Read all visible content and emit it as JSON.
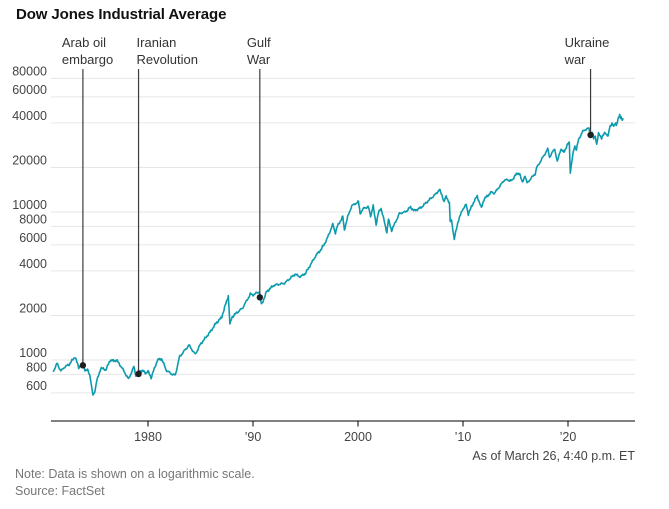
{
  "header": {
    "title": "Dow Jones Industrial Average"
  },
  "footer": {
    "as_of": "As of March 26, 4:40 p.m. ET",
    "note": "Note: Data is shown on a logarithmic scale.",
    "source": "Source: FactSet"
  },
  "chart_data": {
    "type": "line",
    "title": "Dow Jones Industrial Average",
    "scale": "logarithmic-y",
    "line_color": "#0c9aad",
    "gridline_color": "#e6e6e6",
    "axis_color": "#000000",
    "tick_label_color": "#444444",
    "annotation_color": "#333333",
    "legend": "none",
    "grid": "horizontal-only",
    "xlim": [
      1971,
      2025.3
    ],
    "ylim": [
      550,
      90000
    ],
    "y_ticks": [
      80000,
      60000,
      40000,
      20000,
      10000,
      8000,
      6000,
      4000,
      2000,
      1000,
      800,
      600
    ],
    "x_ticks": [
      {
        "year": 1980,
        "label": "1980"
      },
      {
        "year": 1990,
        "label": "’90"
      },
      {
        "year": 2000,
        "label": "2000"
      },
      {
        "year": 2010,
        "label": "’10"
      },
      {
        "year": 2020,
        "label": "’20"
      }
    ],
    "annotations": [
      {
        "label_lines": [
          "Arab oil",
          "embargo"
        ],
        "year": 1973.8,
        "value": 920,
        "label_dx": -21
      },
      {
        "label_lines": [
          "Iranian",
          "Revolution"
        ],
        "year": 1979.1,
        "value": 805,
        "label_dx": -2
      },
      {
        "label_lines": [
          "Gulf",
          "War"
        ],
        "year": 1990.65,
        "value": 2650,
        "label_dx": -13
      },
      {
        "label_lines": [
          "Ukraine",
          "war"
        ],
        "year": 2022.15,
        "value": 33131,
        "label_dx": -26
      }
    ],
    "series": [
      {
        "name": "Dow Jones Industrial Average",
        "points": [
          [
            1971.0,
            839
          ],
          [
            1971.35,
            950
          ],
          [
            1971.7,
            840
          ],
          [
            1972.0,
            890
          ],
          [
            1972.5,
            935
          ],
          [
            1973.05,
            1052
          ],
          [
            1973.4,
            890
          ],
          [
            1973.6,
            925
          ],
          [
            1973.8,
            960
          ],
          [
            1974.0,
            855
          ],
          [
            1974.25,
            850
          ],
          [
            1974.45,
            800
          ],
          [
            1974.75,
            577
          ],
          [
            1974.95,
            620
          ],
          [
            1975.1,
            710
          ],
          [
            1975.5,
            880
          ],
          [
            1976.0,
            860
          ],
          [
            1976.4,
            1000
          ],
          [
            1976.75,
            985
          ],
          [
            1977.0,
            1000
          ],
          [
            1977.5,
            890
          ],
          [
            1978.15,
            742
          ],
          [
            1978.65,
            900
          ],
          [
            1978.85,
            790
          ],
          [
            1979.1,
            840
          ],
          [
            1979.5,
            845
          ],
          [
            1979.8,
            815
          ],
          [
            1980.0,
            840
          ],
          [
            1980.3,
            760
          ],
          [
            1980.9,
            1000
          ],
          [
            1981.3,
            1020
          ],
          [
            1981.75,
            850
          ],
          [
            1982.3,
            800
          ],
          [
            1982.6,
            790
          ],
          [
            1983.0,
            1050
          ],
          [
            1983.9,
            1260
          ],
          [
            1984.5,
            1090
          ],
          [
            1985.0,
            1280
          ],
          [
            1985.9,
            1540
          ],
          [
            1986.5,
            1780
          ],
          [
            1987.0,
            1930
          ],
          [
            1987.65,
            2722
          ],
          [
            1987.8,
            1738
          ],
          [
            1988.0,
            1950
          ],
          [
            1988.5,
            2100
          ],
          [
            1989.0,
            2240
          ],
          [
            1989.75,
            2790
          ],
          [
            1990.0,
            2750
          ],
          [
            1990.6,
            2900
          ],
          [
            1990.8,
            2365
          ],
          [
            1991.0,
            2550
          ],
          [
            1991.3,
            2900
          ],
          [
            1992.0,
            3200
          ],
          [
            1993.0,
            3300
          ],
          [
            1994.0,
            3800
          ],
          [
            1994.5,
            3650
          ],
          [
            1995.0,
            3850
          ],
          [
            1996.0,
            5100
          ],
          [
            1996.5,
            5600
          ],
          [
            1997.0,
            6450
          ],
          [
            1997.6,
            8250
          ],
          [
            1997.85,
            7200
          ],
          [
            1998.0,
            7900
          ],
          [
            1998.55,
            9300
          ],
          [
            1998.7,
            7550
          ],
          [
            1999.0,
            9180
          ],
          [
            1999.4,
            11000
          ],
          [
            2000.05,
            11720
          ],
          [
            2000.2,
            9800
          ],
          [
            2000.6,
            10700
          ],
          [
            2001.0,
            10780
          ],
          [
            2001.2,
            9400
          ],
          [
            2001.45,
            11000
          ],
          [
            2001.72,
            8240
          ],
          [
            2001.95,
            9900
          ],
          [
            2002.2,
            10600
          ],
          [
            2002.75,
            7286
          ],
          [
            2002.9,
            8900
          ],
          [
            2003.2,
            7500
          ],
          [
            2003.95,
            9780
          ],
          [
            2004.5,
            10000
          ],
          [
            2005.0,
            10780
          ],
          [
            2005.35,
            10200
          ],
          [
            2006.0,
            10700
          ],
          [
            2006.9,
            12300
          ],
          [
            2007.3,
            13000
          ],
          [
            2007.76,
            14164
          ],
          [
            2008.0,
            13000
          ],
          [
            2008.2,
            11700
          ],
          [
            2008.4,
            12800
          ],
          [
            2008.7,
            11500
          ],
          [
            2008.78,
            8500
          ],
          [
            2008.9,
            8800
          ],
          [
            2009.17,
            6547
          ],
          [
            2009.5,
            8500
          ],
          [
            2009.95,
            10400
          ],
          [
            2010.3,
            11200
          ],
          [
            2010.5,
            9700
          ],
          [
            2011.0,
            11600
          ],
          [
            2011.35,
            12800
          ],
          [
            2011.75,
            10650
          ],
          [
            2012.0,
            12200
          ],
          [
            2012.7,
            13600
          ],
          [
            2013.0,
            13400
          ],
          [
            2013.95,
            16500
          ],
          [
            2014.7,
            16300
          ],
          [
            2014.95,
            17800
          ],
          [
            2015.4,
            18300
          ],
          [
            2015.65,
            15700
          ],
          [
            2015.9,
            17700
          ],
          [
            2016.1,
            15660
          ],
          [
            2016.9,
            18300
          ],
          [
            2017.0,
            19800
          ],
          [
            2018.07,
            26616
          ],
          [
            2018.25,
            23500
          ],
          [
            2018.73,
            26800
          ],
          [
            2018.98,
            21792
          ],
          [
            2019.3,
            26600
          ],
          [
            2019.6,
            25300
          ],
          [
            2019.95,
            28500
          ],
          [
            2020.12,
            29551
          ],
          [
            2020.22,
            18592
          ],
          [
            2020.45,
            24000
          ],
          [
            2020.65,
            28000
          ],
          [
            2020.8,
            26500
          ],
          [
            2021.0,
            30600
          ],
          [
            2021.35,
            34700
          ],
          [
            2021.85,
            36800
          ],
          [
            2022.0,
            36338
          ],
          [
            2022.15,
            33131
          ],
          [
            2022.3,
            34700
          ],
          [
            2022.45,
            31000
          ],
          [
            2022.6,
            32800
          ],
          [
            2022.73,
            28725
          ],
          [
            2022.9,
            33700
          ],
          [
            2023.0,
            33147
          ],
          [
            2023.2,
            31800
          ],
          [
            2023.55,
            34500
          ],
          [
            2023.82,
            32400
          ],
          [
            2023.99,
            37690
          ],
          [
            2024.2,
            39760
          ],
          [
            2024.35,
            37800
          ],
          [
            2024.55,
            40000
          ],
          [
            2024.6,
            38700
          ],
          [
            2024.75,
            42000
          ],
          [
            2024.92,
            45074
          ],
          [
            2025.0,
            42544
          ],
          [
            2025.05,
            44900
          ],
          [
            2025.17,
            41500
          ],
          [
            2025.23,
            42587
          ]
        ]
      }
    ]
  }
}
